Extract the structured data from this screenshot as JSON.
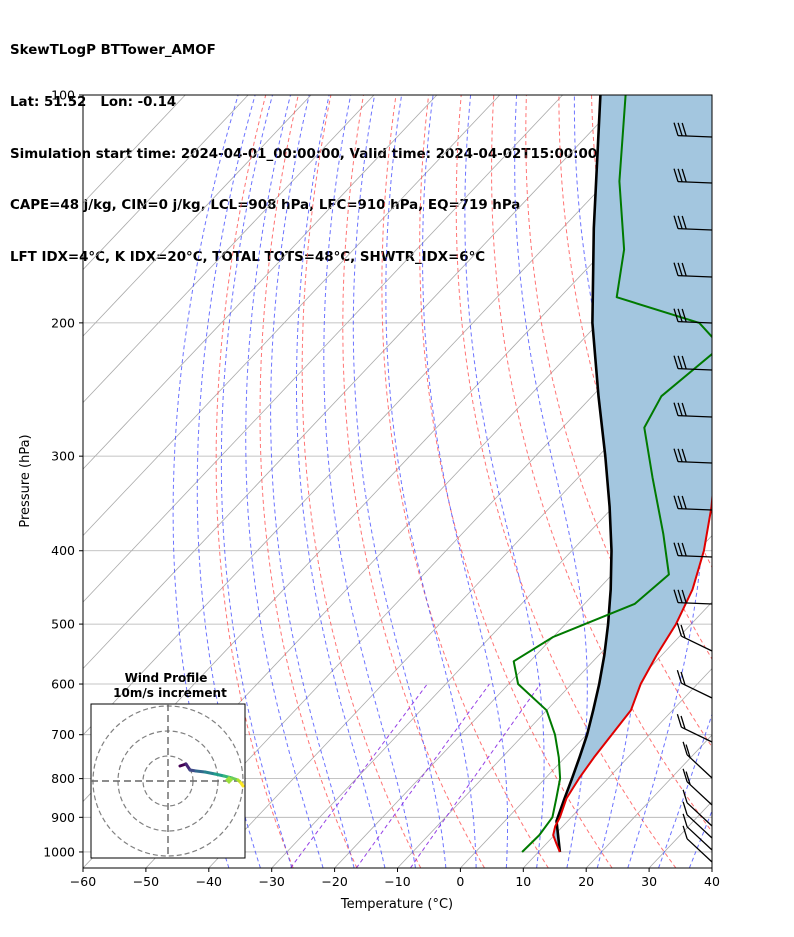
{
  "header": {
    "line1": "SkewTLogP BTTower_AMOF",
    "line2": "Lat: 51.52   Lon: -0.14",
    "line3": "Simulation start time: 2024-04-01_00:00:00, Valid time: 2024-04-02T15:00:00.00",
    "line4": "CAPE=48 j/kg, CIN=0 j/kg, LCL=908 hPa, LFC=910 hPa, EQ=719 hPa",
    "line5": "LFT IDX=4°C, K IDX=20°C, TOTAL TOTS=48°C, SHWTR_IDX=6°C"
  },
  "chart_data": [
    {
      "type": "line",
      "subtype": "skew-T log-P",
      "xlabel": "Temperature (°C)",
      "ylabel": "Pressure (hPa)",
      "xlim": [
        -60,
        40
      ],
      "ylim": [
        1050,
        100
      ],
      "y_scale": "log",
      "x_ticks": [
        "−60",
        "−50",
        "−40",
        "−30",
        "−20",
        "−10",
        "0",
        "10",
        "20",
        "30",
        "40"
      ],
      "y_ticks": [
        "100",
        "200",
        "300",
        "400",
        "500",
        "600",
        "700",
        "800",
        "900",
        "1000"
      ],
      "grid": true,
      "colors": {
        "temperature": "#e00000",
        "dewpoint": "#007a00",
        "parcel": "#000000",
        "cape_fill": "#a3c6df",
        "dry_adiabat": "#ff5c5c",
        "moist_adiabat": "#3c46ff",
        "mixing_ratio": "#8a2be2",
        "isotherm": "#aaaaaa"
      },
      "series": [
        {
          "role": "temperature",
          "points": [
            [
              1000,
              13.4
            ],
            [
              975,
              11.6
            ],
            [
              950,
              9.8
            ],
            [
              925,
              8.8
            ],
            [
              900,
              8.2
            ],
            [
              850,
              6.4
            ],
            [
              800,
              5.4
            ],
            [
              750,
              4.6
            ],
            [
              700,
              4.0
            ],
            [
              650,
              3.4
            ],
            [
              600,
              1.0
            ],
            [
              550,
              -0.8
            ],
            [
              500,
              -2.4
            ],
            [
              450,
              -5.0
            ],
            [
              400,
              -9.0
            ],
            [
              350,
              -14.4
            ],
            [
              300,
              -21.3
            ],
            [
              275,
              -25.0
            ],
            [
              250,
              -29.5
            ],
            [
              225,
              -34.5
            ],
            [
              200,
              -39.0
            ],
            [
              180,
              -42.5
            ],
            [
              160,
              -46.0
            ],
            [
              140,
              -50.0
            ],
            [
              120,
              -54.0
            ],
            [
              110,
              -56.0
            ],
            [
              100,
              -59.0
            ]
          ]
        },
        {
          "role": "dewpoint",
          "points": [
            [
              1000,
              7.4
            ],
            [
              950,
              7.6
            ],
            [
              900,
              7.0
            ],
            [
              850,
              4.8
            ],
            [
              800,
              2.4
            ],
            [
              750,
              -1.0
            ],
            [
              700,
              -5.0
            ],
            [
              650,
              -10.0
            ],
            [
              600,
              -18.5
            ],
            [
              560,
              -22.6
            ],
            [
              520,
              -20.0
            ],
            [
              470,
              -12.0
            ],
            [
              430,
              -11.0
            ],
            [
              380,
              -18.0
            ],
            [
              320,
              -28.2
            ],
            [
              275,
              -37.0
            ],
            [
              250,
              -39.0
            ],
            [
              215,
              -37.0
            ],
            [
              200,
              -44.0
            ],
            [
              185,
              -61.0
            ],
            [
              160,
              -67.0
            ],
            [
              130,
              -78.0
            ],
            [
              100,
              -90.0
            ]
          ]
        },
        {
          "role": "parcel",
          "points": [
            [
              1000,
              13.4
            ],
            [
              910,
              8.2
            ],
            [
              850,
              6.1
            ],
            [
              800,
              4.3
            ],
            [
              750,
              2.3
            ],
            [
              700,
              0.1
            ],
            [
              650,
              -2.6
            ],
            [
              600,
              -5.6
            ],
            [
              550,
              -9.1
            ],
            [
              500,
              -13.2
            ],
            [
              450,
              -18.0
            ],
            [
              400,
              -23.7
            ],
            [
              350,
              -30.6
            ],
            [
              300,
              -38.9
            ],
            [
              250,
              -49.0
            ],
            [
              200,
              -61.0
            ],
            [
              150,
              -75.0
            ],
            [
              100,
              -94.0
            ]
          ]
        }
      ]
    },
    {
      "type": "line",
      "subtype": "hodograph",
      "title": "Wind Profile",
      "subtitle": "10m/s increment"
    }
  ]
}
